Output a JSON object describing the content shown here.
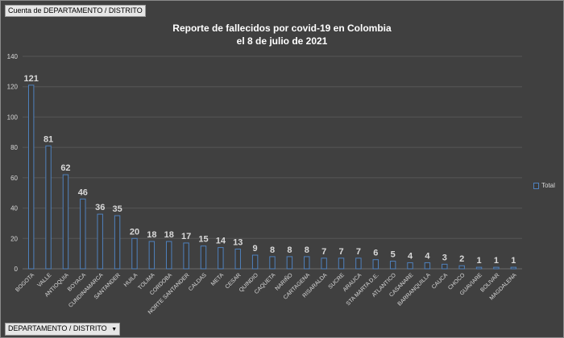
{
  "filter_button": {
    "label": "Cuenta de DEPARTAMENTO / DISTRITO"
  },
  "axis_button": {
    "label": "DEPARTAMENTO / DISTRITO",
    "icon": "dropdown-arrow-icon"
  },
  "colors": {
    "background": "#404040",
    "bar_fill": "#3a3a3a",
    "bar_stroke": "#4f81bd",
    "grid": "#565656",
    "text": "#d9d9d9",
    "title": "#ffffff"
  },
  "chart_data": {
    "type": "bar",
    "title_line1": "Reporte de fallecidos por covid-19 en Colombia",
    "title_line2": "el 8 de julio de 2021",
    "categories": [
      "BOGOTA",
      "VALLE",
      "ANTIOQUIA",
      "BOYACA",
      "CUNDINAMARCA",
      "SANTANDER",
      "HUILA",
      "TOLIMA",
      "CORDOBA",
      "NORTE SANTANDER",
      "CALDAS",
      "META",
      "CESAR",
      "QUINDIO",
      "CAQUETA",
      "NARIÑO",
      "CARTAGENA",
      "RISARALDA",
      "SUCRE",
      "ARAUCA",
      "STA MARTA D.E.",
      "ATLANTICO",
      "CASANARE",
      "BARRANQUILLA",
      "CAUCA",
      "CHOCO",
      "GUAVIARE",
      "BOLIVAR",
      "MAGDALENA"
    ],
    "series": [
      {
        "name": "Total",
        "values": [
          121,
          81,
          62,
          46,
          36,
          35,
          20,
          18,
          18,
          17,
          15,
          14,
          13,
          9,
          8,
          8,
          8,
          7,
          7,
          7,
          6,
          5,
          4,
          4,
          3,
          2,
          1,
          1,
          1
        ]
      }
    ],
    "ylim": [
      0,
      140
    ],
    "yticks": [
      0,
      20,
      40,
      60,
      80,
      100,
      120,
      140
    ],
    "grid": true,
    "legend_position": "right",
    "data_labels": true
  }
}
